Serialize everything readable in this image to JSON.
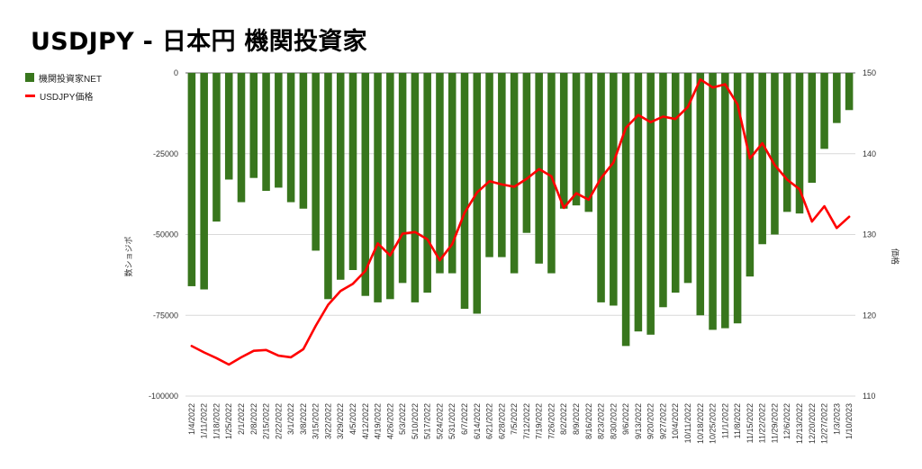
{
  "chart_data": {
    "type": "bar+line",
    "title": "USDJPY - 日本円 機関投資家",
    "ylabel_left": "数ショジポ",
    "ylabel_right": "価格",
    "y_left_lim": [
      -100000,
      0
    ],
    "y_left_ticks": [
      "0",
      "-25000",
      "-50000",
      "-75000",
      "-100000"
    ],
    "y_right_lim": [
      110,
      150
    ],
    "y_right_ticks": [
      "150",
      "140",
      "130",
      "120",
      "110"
    ],
    "grid": true,
    "legend_position": "left",
    "colors": {
      "bars": "#38761d",
      "line": "#ff0000"
    },
    "series": [
      {
        "name": "機関投資家NET",
        "type": "bar",
        "axis": "left",
        "values": [
          -66000,
          -67000,
          -46000,
          -33000,
          -40000,
          -32500,
          -36500,
          -35500,
          -40000,
          -42000,
          -55000,
          -70000,
          -64000,
          -61000,
          -69000,
          -71000,
          -70000,
          -65000,
          -71000,
          -68000,
          -62000,
          -62000,
          -73000,
          -74500,
          -57000,
          -57000,
          -62000,
          -49500,
          -59000,
          -62000,
          -42000,
          -41000,
          -43000,
          -71000,
          -72000,
          -84500,
          -80000,
          -81000,
          -72500,
          -68000,
          -65000,
          -75000,
          -79500,
          -79000,
          -77500,
          -63000,
          -53000,
          -50000,
          -43000,
          -43500,
          -34000,
          -23500,
          -15500,
          -11500
        ]
      },
      {
        "name": "USDJPY価格",
        "type": "line",
        "axis": "right",
        "values": [
          116.2,
          115.4,
          114.7,
          113.9,
          114.8,
          115.6,
          115.7,
          115.0,
          114.8,
          115.8,
          118.7,
          121.3,
          123.0,
          123.9,
          125.5,
          128.9,
          127.4,
          130.1,
          130.3,
          129.4,
          126.8,
          128.8,
          132.7,
          135.2,
          136.6,
          136.2,
          135.9,
          136.9,
          138.1,
          137.2,
          133.3,
          135.1,
          134.3,
          137.0,
          138.9,
          143.2,
          144.8,
          143.9,
          144.6,
          144.3,
          145.8,
          149.2,
          148.2,
          148.6,
          146.1,
          139.4,
          141.3,
          138.6,
          136.8,
          135.6,
          131.6,
          133.5,
          130.8,
          132.2
        ]
      }
    ],
    "categories": [
      "1/4/2022",
      "1/11/2022",
      "1/18/2022",
      "1/25/2022",
      "2/1/2022",
      "2/8/2022",
      "2/15/2022",
      "2/22/2022",
      "3/1/2022",
      "3/8/2022",
      "3/15/2022",
      "3/22/2022",
      "3/29/2022",
      "4/5/2022",
      "4/12/2022",
      "4/19/2022",
      "4/26/2022",
      "5/3/2022",
      "5/10/2022",
      "5/17/2022",
      "5/24/2022",
      "5/31/2022",
      "6/7/2022",
      "6/14/2022",
      "6/21/2022",
      "6/28/2022",
      "7/5/2022",
      "7/12/2022",
      "7/19/2022",
      "7/26/2022",
      "8/2/2022",
      "8/9/2022",
      "8/16/2022",
      "8/23/2022",
      "8/30/2022",
      "9/6/2022",
      "9/13/2022",
      "9/20/2022",
      "9/27/2022",
      "10/4/2022",
      "10/11/2022",
      "10/18/2022",
      "10/25/2022",
      "11/1/2022",
      "11/8/2022",
      "11/15/2022",
      "11/22/2022",
      "11/29/2022",
      "12/6/2022",
      "12/13/2022",
      "12/20/2022",
      "12/27/2022",
      "1/3/2023",
      "1/10/2023"
    ]
  }
}
